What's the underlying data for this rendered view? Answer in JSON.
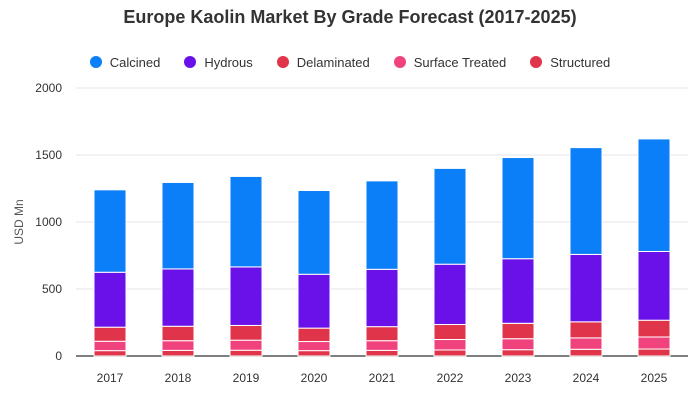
{
  "chart_data": {
    "type": "bar",
    "stacked": true,
    "title": "Europe Kaolin Market By Grade Forecast (2017-2025)",
    "xlabel": "",
    "ylabel": "USD Mn",
    "ylim": [
      0,
      2000
    ],
    "yticks": [
      0,
      500,
      1000,
      1500,
      2000
    ],
    "grid": true,
    "legend_position": "top",
    "categories": [
      "2017",
      "2018",
      "2019",
      "2020",
      "2021",
      "2022",
      "2023",
      "2024",
      "2025"
    ],
    "series": [
      {
        "name": "Structured",
        "color": "#e0344b",
        "values": [
          40,
          42,
          43,
          40,
          42,
          45,
          47,
          50,
          52
        ]
      },
      {
        "name": "Surface Treated",
        "color": "#f0437d",
        "values": [
          70,
          72,
          75,
          68,
          72,
          78,
          82,
          85,
          90
        ]
      },
      {
        "name": "Delaminated",
        "color": "#e0344b",
        "values": [
          105,
          108,
          110,
          100,
          105,
          112,
          115,
          120,
          125
        ]
      },
      {
        "name": "Hydrous",
        "color": "#6a11ea",
        "values": [
          410,
          428,
          437,
          402,
          428,
          450,
          482,
          503,
          513
        ]
      },
      {
        "name": "Calcined",
        "color": "#0b7ff7",
        "values": [
          615,
          645,
          675,
          625,
          660,
          715,
          755,
          797,
          840
        ]
      }
    ]
  },
  "legend": {
    "items": [
      {
        "label": "Calcined",
        "color": "#0b7ff7"
      },
      {
        "label": "Hydrous",
        "color": "#6a11ea"
      },
      {
        "label": "Delaminated",
        "color": "#e0344b"
      },
      {
        "label": "Surface Treated",
        "color": "#f0437d"
      },
      {
        "label": "Structured",
        "color": "#e0344b"
      }
    ]
  }
}
